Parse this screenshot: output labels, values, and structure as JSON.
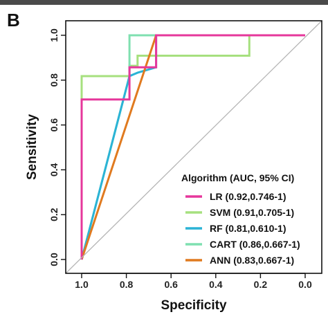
{
  "panel_letter": "B",
  "chart_data": {
    "type": "line",
    "xlabel": "Specificity",
    "ylabel": "Sensitivity",
    "xlim": [
      1.0,
      0.0
    ],
    "ylim": [
      0.0,
      1.0
    ],
    "x_reversed": true,
    "x_ticks": [
      "1.0",
      "0.8",
      "0.6",
      "0.4",
      "0.2",
      "0.0"
    ],
    "x_tick_values": [
      1.0,
      0.8,
      0.6,
      0.4,
      0.2,
      0.0
    ],
    "y_ticks": [
      "0.0",
      "0.2",
      "0.4",
      "0.6",
      "0.8",
      "1.0"
    ],
    "y_tick_values": [
      0.0,
      0.2,
      0.4,
      0.6,
      0.8,
      1.0
    ],
    "reference_line": true,
    "grid": false,
    "legend_title": "Algorithm (AUC, 95% CI)",
    "legend_position": "bottom-right",
    "series": [
      {
        "name": "LR (0.92,0.746-1)",
        "color": "#e6379b",
        "points": [
          [
            1.0,
            0.0
          ],
          [
            1.0,
            0.714
          ],
          [
            0.786,
            0.714
          ],
          [
            0.786,
            0.857
          ],
          [
            0.667,
            0.857
          ],
          [
            0.667,
            1.0
          ],
          [
            0.0,
            1.0
          ]
        ]
      },
      {
        "name": "SVM (0.91,0.705-1)",
        "color": "#a6e07e",
        "points": [
          [
            1.0,
            0.0
          ],
          [
            1.0,
            0.818
          ],
          [
            0.786,
            0.818
          ],
          [
            0.786,
            0.864
          ],
          [
            0.75,
            0.864
          ],
          [
            0.75,
            0.909
          ],
          [
            0.25,
            0.909
          ],
          [
            0.25,
            1.0
          ],
          [
            0.0,
            1.0
          ]
        ]
      },
      {
        "name": "RF (0.81,0.610-1)",
        "color": "#2bb3d6",
        "points": [
          [
            1.0,
            0.0
          ],
          [
            0.786,
            0.818
          ],
          [
            0.75,
            0.833
          ],
          [
            0.667,
            0.857
          ],
          [
            0.667,
            1.0
          ],
          [
            0.0,
            1.0
          ]
        ]
      },
      {
        "name": "CART (0.86,0.667-1)",
        "color": "#7fe0b0",
        "points": [
          [
            1.0,
            0.0
          ],
          [
            0.786,
            0.818
          ],
          [
            0.786,
            1.0
          ],
          [
            0.0,
            1.0
          ]
        ]
      },
      {
        "name": "ANN (0.83,0.667-1)",
        "color": "#e07a1f",
        "points": [
          [
            1.0,
            0.0
          ],
          [
            0.667,
            1.0
          ],
          [
            0.0,
            1.0
          ]
        ]
      }
    ]
  }
}
